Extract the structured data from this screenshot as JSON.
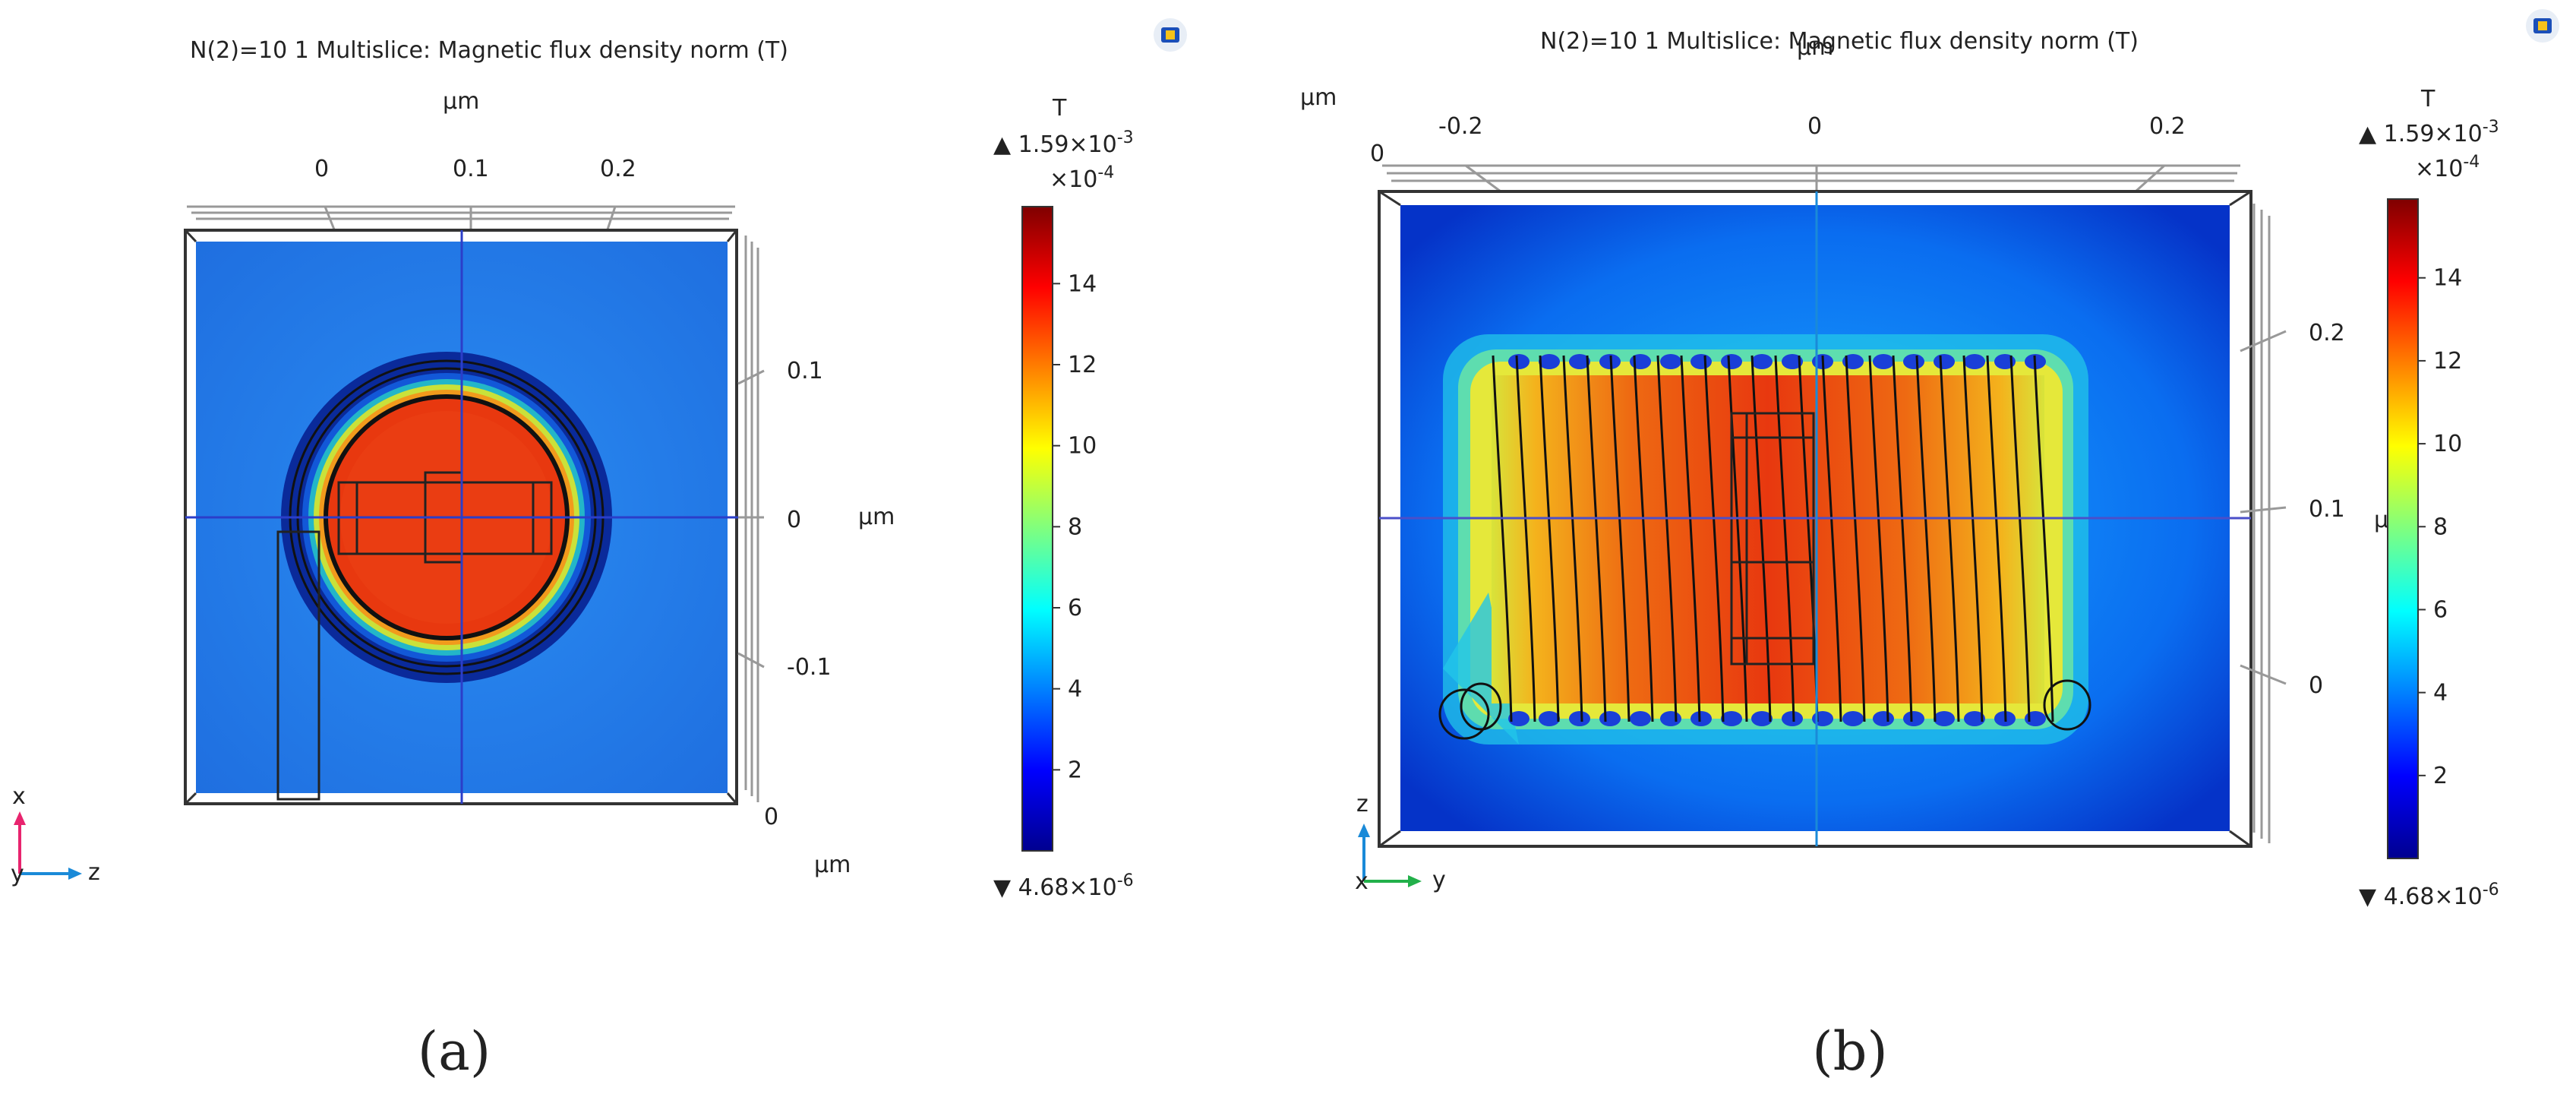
{
  "panel_a": {
    "title": "N(2)=10 1   Multislice: Magnetic flux density norm (T)",
    "unit_top": "μm",
    "top_ticks": [
      "0",
      "0.1",
      "0.2"
    ],
    "right_ticks": [
      "0.1",
      "0",
      "-0.1"
    ],
    "unit_right": "μm",
    "bottom_tick": "0",
    "unit_bottom": "μm",
    "triad": {
      "axis_up": "x",
      "axis_right": "z",
      "axis_in": "y"
    },
    "caption": "(a)",
    "colorbar": {
      "unit": "T",
      "max_label": "▲ 1.59×10",
      "max_exp": "-3",
      "scale_label": "×10",
      "scale_exp": "-4",
      "min_label": "▼ 4.68×10",
      "min_exp": "-6",
      "ticks": [
        "14",
        "12",
        "10",
        "8",
        "6",
        "4",
        "2"
      ]
    }
  },
  "panel_b": {
    "title": "N(2)=10 1   Multislice: Magnetic flux density norm (T)",
    "unit_top_left": "μm",
    "unit_top_center": "μm",
    "corner_zero": "0",
    "top_ticks": [
      "-0.2",
      "0",
      "0.2"
    ],
    "right_ticks": [
      "0.2",
      "0.1",
      "0"
    ],
    "unit_right": "μ",
    "triad": {
      "axis_up": "z",
      "axis_right": "y",
      "axis_in": "x"
    },
    "caption": "(b)",
    "colorbar": {
      "unit": "T",
      "max_label": "▲ 1.59×10",
      "max_exp": "-3",
      "scale_label": "×10",
      "scale_exp": "-4",
      "min_label": "▼ 4.68×10",
      "min_exp": "-6",
      "ticks": [
        "14",
        "12",
        "10",
        "8",
        "6",
        "4",
        "2"
      ]
    }
  },
  "colors": {
    "field_low": "#00008f",
    "field_background": "#1f7ae6",
    "field_high": "#e8380f",
    "axis_line": "#2b3ec9"
  }
}
